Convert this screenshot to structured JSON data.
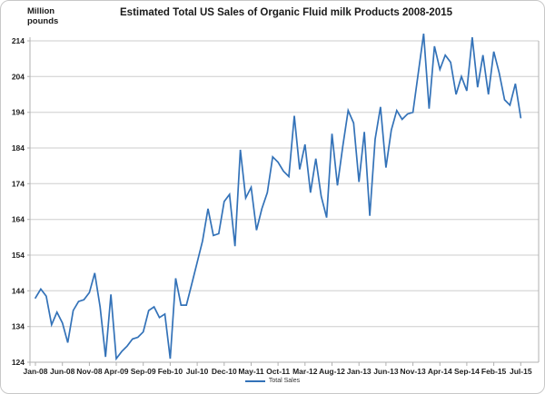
{
  "chart": {
    "title": "Estimated Total US Sales of Organic Fluid milk Products 2008-2015",
    "y_axis_unit": "Million\npounds",
    "legend_label": "Total Sales",
    "colors": {
      "line": "#3372b8",
      "gridline": "#cdcdcd",
      "axis": "#b0b0b0",
      "text": "#1f1f1f",
      "frame_border": "#c8c8c8"
    }
  },
  "chart_data": {
    "type": "line",
    "title": "Estimated Total US Sales of Organic Fluid milk Products 2008-2015",
    "xlabel": "",
    "ylabel": "Million pounds",
    "ylim": [
      124,
      214
    ],
    "y_ticks": [
      124,
      134,
      144,
      154,
      164,
      174,
      184,
      194,
      204,
      214
    ],
    "x_tick_labels": [
      "Jan-08",
      "Jun-08",
      "Nov-08",
      "Apr-09",
      "Sep-09",
      "Feb-10",
      "Jul-10",
      "Dec-10",
      "May-11",
      "Oct-11",
      "Mar-12",
      "Aug-12",
      "Jan-13",
      "Jun-13",
      "Nov-13",
      "Apr-14",
      "Sep-14",
      "Feb-15",
      "Jul-15"
    ],
    "x_tick_step": 5,
    "grid": true,
    "legend_position": "bottom",
    "x": [
      "Jan-08",
      "Feb-08",
      "Mar-08",
      "Apr-08",
      "May-08",
      "Jun-08",
      "Jul-08",
      "Aug-08",
      "Sep-08",
      "Oct-08",
      "Nov-08",
      "Dec-08",
      "Jan-09",
      "Feb-09",
      "Mar-09",
      "Apr-09",
      "May-09",
      "Jun-09",
      "Jul-09",
      "Aug-09",
      "Sep-09",
      "Oct-09",
      "Nov-09",
      "Dec-09",
      "Jan-10",
      "Feb-10",
      "Mar-10",
      "Apr-10",
      "May-10",
      "Jun-10",
      "Jul-10",
      "Aug-10",
      "Sep-10",
      "Oct-10",
      "Nov-10",
      "Dec-10",
      "Jan-11",
      "Feb-11",
      "Mar-11",
      "Apr-11",
      "May-11",
      "Jun-11",
      "Jul-11",
      "Aug-11",
      "Sep-11",
      "Oct-11",
      "Nov-11",
      "Dec-11",
      "Jan-12",
      "Feb-12",
      "Mar-12",
      "Apr-12",
      "May-12",
      "Jun-12",
      "Jul-12",
      "Aug-12",
      "Sep-12",
      "Oct-12",
      "Nov-12",
      "Dec-12",
      "Jan-13",
      "Feb-13",
      "Mar-13",
      "Apr-13",
      "May-13",
      "Jun-13",
      "Jul-13",
      "Aug-13",
      "Sep-13",
      "Oct-13",
      "Nov-13",
      "Dec-13",
      "Jan-14",
      "Feb-14",
      "Mar-14",
      "Apr-14",
      "May-14",
      "Jun-14",
      "Jul-14",
      "Aug-14",
      "Sep-14",
      "Oct-14",
      "Nov-14",
      "Dec-14",
      "Jan-15",
      "Feb-15",
      "Mar-15",
      "Apr-15",
      "May-15",
      "Jun-15",
      "Jul-15"
    ],
    "series": [
      {
        "name": "Total Sales",
        "values": [
          142,
          144.5,
          142.5,
          134.5,
          138,
          135,
          129.5,
          138.5,
          141,
          141.5,
          143.5,
          149,
          139.5,
          125.5,
          143,
          125,
          127,
          128.5,
          130.5,
          131,
          132.5,
          138.5,
          139.5,
          136.5,
          137.5,
          125,
          147.5,
          140,
          140,
          146,
          152,
          158,
          167,
          159.5,
          160,
          169,
          171,
          156.5,
          183.5,
          170,
          173,
          161,
          167,
          171.5,
          181.5,
          180,
          177.5,
          176,
          193,
          178,
          185,
          171.5,
          181,
          170.5,
          164.5,
          188,
          173.5,
          184.5,
          194.5,
          191,
          174.5,
          188.5,
          165,
          186.5,
          195.5,
          178.5,
          189,
          194.5,
          192,
          193.5,
          194,
          205,
          216,
          195,
          212.5,
          206,
          210,
          208,
          199,
          204,
          200,
          215,
          201,
          210,
          199,
          211,
          205,
          197.5,
          196,
          202,
          192.5
        ]
      }
    ]
  }
}
